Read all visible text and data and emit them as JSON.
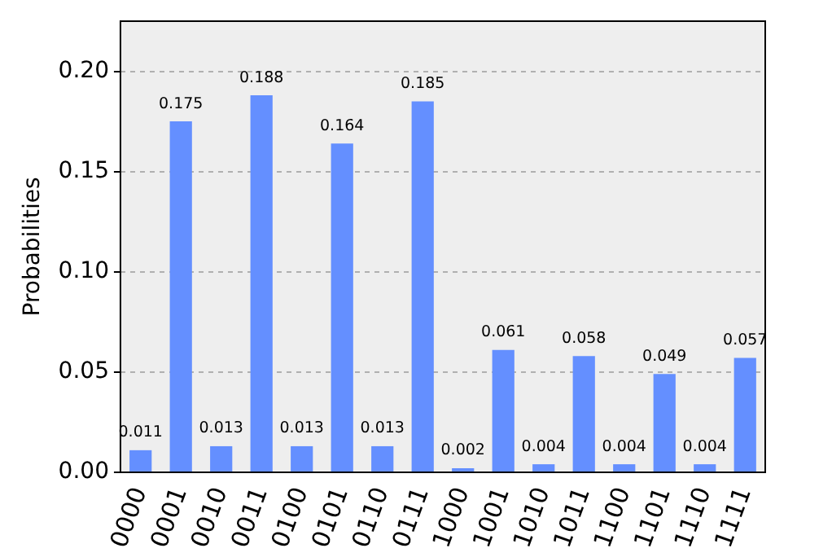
{
  "chart_data": {
    "type": "bar",
    "ylabel": "Probabilities",
    "categories": [
      "0000",
      "0001",
      "0010",
      "0011",
      "0100",
      "0101",
      "0110",
      "0111",
      "1000",
      "1001",
      "1010",
      "1011",
      "1100",
      "1101",
      "1110",
      "1111"
    ],
    "values": [
      0.011,
      0.175,
      0.013,
      0.188,
      0.013,
      0.164,
      0.013,
      0.185,
      0.002,
      0.061,
      0.004,
      0.058,
      0.004,
      0.049,
      0.004,
      0.057
    ],
    "color": "#648fff",
    "data_labels": true,
    "ylim": [
      0,
      0.225
    ],
    "yticks": [
      {
        "value": 0,
        "label": "0.00"
      },
      {
        "value": 0.05,
        "label": "0.05"
      },
      {
        "value": 0.1,
        "label": "0.10"
      },
      {
        "value": 0.15,
        "label": "0.15"
      },
      {
        "value": 0.2,
        "label": "0.20"
      }
    ],
    "grid": "y",
    "legend": false
  }
}
